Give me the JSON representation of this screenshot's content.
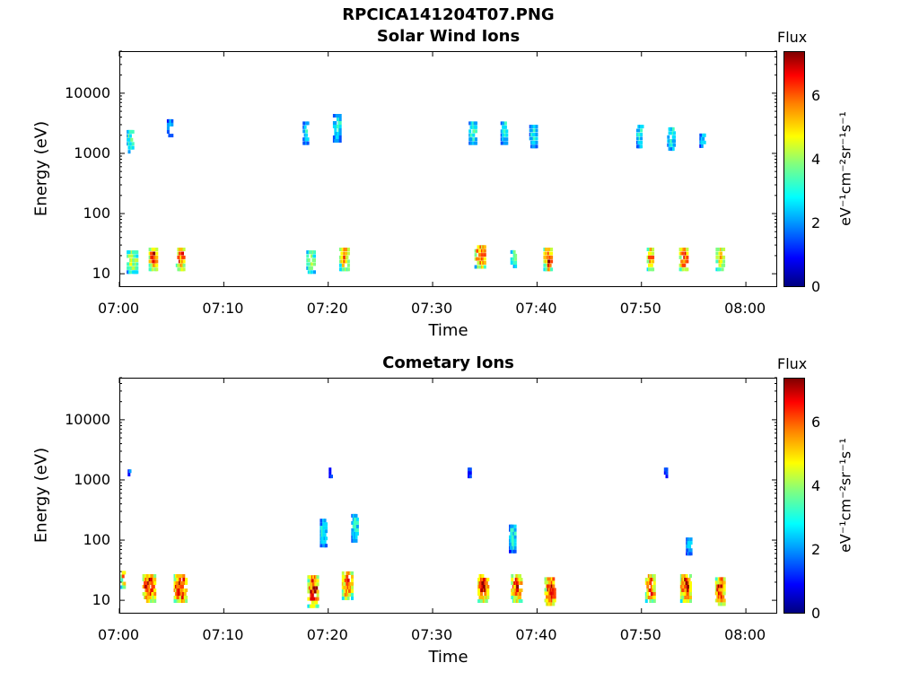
{
  "header": {
    "title": "RPCICA141204T07.PNG"
  },
  "colors": {
    "jet": [
      "#00008f",
      "#0000ff",
      "#0050ff",
      "#00a0ff",
      "#00e0ff",
      "#40ffbf",
      "#80ff80",
      "#c0ff40",
      "#ffff00",
      "#ffc000",
      "#ff8000",
      "#ff4000",
      "#e00000",
      "#900000"
    ]
  },
  "chart_data": [
    {
      "type": "heatmap",
      "title": "Solar Wind Ions",
      "xlabel": "Time",
      "ylabel": "Energy (eV)",
      "xticks": [
        "07:00",
        "07:10",
        "07:20",
        "07:30",
        "07:40",
        "07:50",
        "08:00"
      ],
      "yticks": [
        "10",
        "100",
        "1000",
        "10000"
      ],
      "yscale": "log",
      "ylim": [
        6,
        50000
      ],
      "xlim_minutes": [
        0,
        63
      ],
      "colorbar": {
        "title": "Flux",
        "label": "eV⁻¹cm⁻²sr⁻¹s⁻¹",
        "ticks": [
          "0",
          "2",
          "4",
          "6"
        ],
        "range": [
          0,
          7.4
        ]
      },
      "clusters": [
        {
          "t": 1.2,
          "e": 18,
          "dt": 1.0,
          "de": 2.5,
          "v": 4.5
        },
        {
          "t": 3.2,
          "e": 20,
          "dt": 0.8,
          "de": 2.5,
          "v": 6.8
        },
        {
          "t": 5.8,
          "e": 20,
          "dt": 0.8,
          "de": 2.5,
          "v": 6.5
        },
        {
          "t": 18.3,
          "e": 18,
          "dt": 0.8,
          "de": 2.5,
          "v": 4.2
        },
        {
          "t": 21.5,
          "e": 20,
          "dt": 0.9,
          "de": 2.5,
          "v": 6.0
        },
        {
          "t": 34.5,
          "e": 22,
          "dt": 1.0,
          "de": 2.5,
          "v": 6.8
        },
        {
          "t": 37.7,
          "e": 20,
          "dt": 0.5,
          "de": 2.0,
          "v": 3.8
        },
        {
          "t": 41.0,
          "e": 20,
          "dt": 0.8,
          "de": 2.5,
          "v": 7.0
        },
        {
          "t": 50.8,
          "e": 20,
          "dt": 0.6,
          "de": 2.5,
          "v": 6.2
        },
        {
          "t": 54.0,
          "e": 20,
          "dt": 0.8,
          "de": 2.5,
          "v": 6.8
        },
        {
          "t": 57.5,
          "e": 20,
          "dt": 0.8,
          "de": 2.5,
          "v": 5.5
        },
        {
          "t": 1.0,
          "e": 1800,
          "dt": 0.6,
          "de": 2.5,
          "v": 3.5
        },
        {
          "t": 4.8,
          "e": 3000,
          "dt": 0.5,
          "de": 2.0,
          "v": 2.5
        },
        {
          "t": 17.8,
          "e": 2500,
          "dt": 0.5,
          "de": 2.5,
          "v": 2.8
        },
        {
          "t": 20.8,
          "e": 3000,
          "dt": 0.7,
          "de": 3.0,
          "v": 3.0
        },
        {
          "t": 33.8,
          "e": 2500,
          "dt": 0.7,
          "de": 2.5,
          "v": 3.2
        },
        {
          "t": 36.8,
          "e": 2500,
          "dt": 0.6,
          "de": 2.5,
          "v": 3.0
        },
        {
          "t": 39.6,
          "e": 2200,
          "dt": 0.7,
          "de": 2.5,
          "v": 3.0
        },
        {
          "t": 49.8,
          "e": 2200,
          "dt": 0.6,
          "de": 2.5,
          "v": 3.0
        },
        {
          "t": 52.8,
          "e": 2000,
          "dt": 0.7,
          "de": 2.5,
          "v": 3.0
        },
        {
          "t": 55.8,
          "e": 2000,
          "dt": 0.5,
          "de": 2.0,
          "v": 2.8
        }
      ]
    },
    {
      "type": "heatmap",
      "title": "Cometary Ions",
      "xlabel": "Time",
      "ylabel": "Energy (eV)",
      "xticks": [
        "07:00",
        "07:10",
        "07:20",
        "07:30",
        "07:40",
        "07:50",
        "08:00"
      ],
      "yticks": [
        "10",
        "100",
        "1000",
        "10000"
      ],
      "yscale": "log",
      "ylim": [
        6,
        50000
      ],
      "xlim_minutes": [
        0,
        63
      ],
      "colorbar": {
        "title": "Flux",
        "label": "eV⁻¹cm⁻²sr⁻¹s⁻¹",
        "ticks": [
          "0",
          "2",
          "4",
          "6"
        ],
        "range": [
          0,
          7.4
        ]
      },
      "clusters": [
        {
          "t": 0.3,
          "e": 25,
          "dt": 0.4,
          "de": 2.0,
          "v": 6.0
        },
        {
          "t": 2.8,
          "e": 18,
          "dt": 1.2,
          "de": 3.0,
          "v": 7.2
        },
        {
          "t": 5.8,
          "e": 18,
          "dt": 1.2,
          "de": 3.0,
          "v": 7.2
        },
        {
          "t": 18.5,
          "e": 16,
          "dt": 1.0,
          "de": 3.5,
          "v": 7.0
        },
        {
          "t": 21.8,
          "e": 20,
          "dt": 1.0,
          "de": 3.0,
          "v": 6.5
        },
        {
          "t": 34.8,
          "e": 18,
          "dt": 1.0,
          "de": 3.0,
          "v": 7.0
        },
        {
          "t": 38.0,
          "e": 18,
          "dt": 1.0,
          "de": 3.0,
          "v": 6.8
        },
        {
          "t": 41.2,
          "e": 16,
          "dt": 1.0,
          "de": 3.0,
          "v": 7.2
        },
        {
          "t": 50.8,
          "e": 18,
          "dt": 0.9,
          "de": 3.0,
          "v": 6.5
        },
        {
          "t": 54.2,
          "e": 18,
          "dt": 1.0,
          "de": 3.0,
          "v": 7.2
        },
        {
          "t": 57.5,
          "e": 16,
          "dt": 0.9,
          "de": 3.0,
          "v": 7.0
        },
        {
          "t": 19.5,
          "e": 150,
          "dt": 0.6,
          "de": 3.0,
          "v": 3.0
        },
        {
          "t": 22.5,
          "e": 180,
          "dt": 0.6,
          "de": 3.0,
          "v": 3.0
        },
        {
          "t": 37.6,
          "e": 120,
          "dt": 0.6,
          "de": 3.0,
          "v": 3.0
        },
        {
          "t": 54.5,
          "e": 90,
          "dt": 0.5,
          "de": 2.0,
          "v": 2.8
        },
        {
          "t": 20.2,
          "e": 1500,
          "dt": 0.3,
          "de": 1.5,
          "v": 1.5
        },
        {
          "t": 33.5,
          "e": 1500,
          "dt": 0.3,
          "de": 1.5,
          "v": 1.5
        },
        {
          "t": 52.3,
          "e": 1500,
          "dt": 0.3,
          "de": 1.5,
          "v": 1.5
        },
        {
          "t": 0.9,
          "e": 1500,
          "dt": 0.2,
          "de": 1.3,
          "v": 1.5
        }
      ]
    }
  ]
}
